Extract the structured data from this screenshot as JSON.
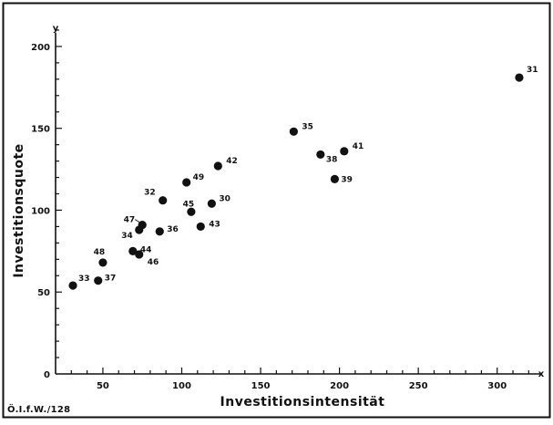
{
  "chart_data": {
    "type": "scatter",
    "title": "",
    "xlabel": "Investitionsintensität",
    "ylabel": "Investitionsquote",
    "x_axis_symbol": "x",
    "y_axis_symbol": "y",
    "xlim": [
      20,
      325
    ],
    "ylim": [
      0,
      215
    ],
    "x_ticks": [
      50,
      100,
      150,
      200,
      250,
      300
    ],
    "y_ticks": [
      50,
      100,
      150,
      200
    ],
    "grid": false,
    "legend": "none",
    "marker_color": "#111111",
    "points": [
      {
        "label": "31",
        "x": 314,
        "y": 181
      },
      {
        "label": "35",
        "x": 171,
        "y": 148
      },
      {
        "label": "38",
        "x": 188,
        "y": 134
      },
      {
        "label": "41",
        "x": 203,
        "y": 136
      },
      {
        "label": "39",
        "x": 197,
        "y": 119
      },
      {
        "label": "42",
        "x": 123,
        "y": 127
      },
      {
        "label": "49",
        "x": 103,
        "y": 117
      },
      {
        "label": "32",
        "x": 88,
        "y": 106
      },
      {
        "label": "30",
        "x": 119,
        "y": 104
      },
      {
        "label": "45",
        "x": 106,
        "y": 99
      },
      {
        "label": "47",
        "x": 75,
        "y": 91
      },
      {
        "label": "43",
        "x": 112,
        "y": 90
      },
      {
        "label": "34",
        "x": 73,
        "y": 88
      },
      {
        "label": "36",
        "x": 86,
        "y": 87
      },
      {
        "label": "44",
        "x": 69,
        "y": 75
      },
      {
        "label": "46",
        "x": 73,
        "y": 73
      },
      {
        "label": "48",
        "x": 50,
        "y": 68
      },
      {
        "label": "37",
        "x": 47,
        "y": 57
      },
      {
        "label": "33",
        "x": 31,
        "y": 54
      }
    ]
  },
  "footer": {
    "credit": "Ö.I.f.W./128"
  }
}
